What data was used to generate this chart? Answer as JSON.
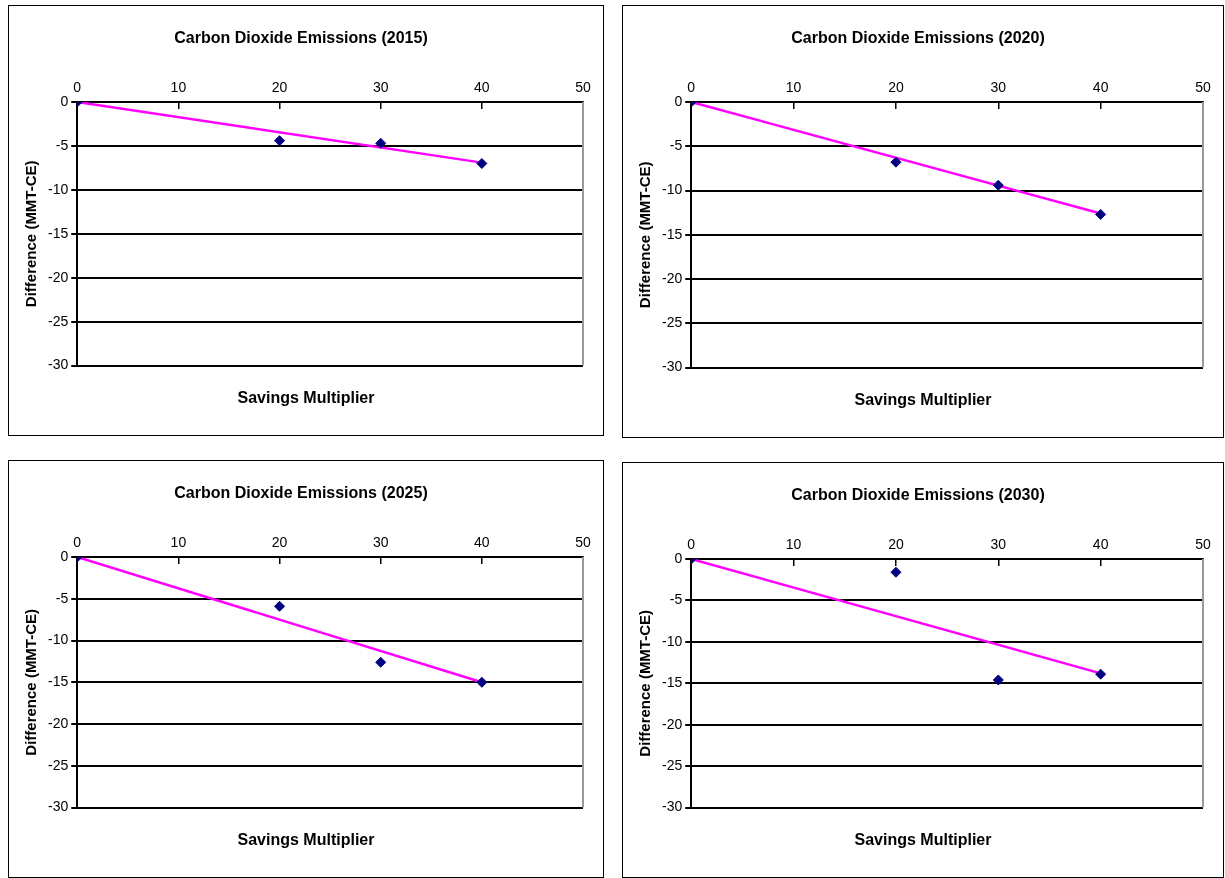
{
  "chart_data": [
    {
      "type": "scatter",
      "title": "Carbon Dioxide Emissions (2015)",
      "xlabel": "Savings Multiplier",
      "ylabel": "Difference (MMT-CE)",
      "xlim": [
        0,
        50
      ],
      "xticks": [
        0,
        10,
        20,
        30,
        40,
        50
      ],
      "ylim": [
        -30,
        0
      ],
      "yticks": [
        -30,
        -25,
        -20,
        -15,
        -10,
        -5,
        0
      ],
      "grid": "y",
      "legend": false,
      "series": [
        {
          "color": "#000080",
          "marker": "diamond",
          "x": [
            0,
            20,
            30,
            40
          ],
          "values": [
            0,
            -4.4,
            -4.7,
            -7.0
          ]
        },
        {
          "type": "line",
          "color": "#ff00ff",
          "marker": "none",
          "line_style": "solid",
          "x": [
            0,
            40
          ],
          "values": [
            0,
            -6.9
          ]
        }
      ]
    },
    {
      "type": "scatter",
      "title": "Carbon Dioxide Emissions (2020)",
      "xlabel": "Savings Multiplier",
      "ylabel": "Difference (MMT-CE)",
      "xlim": [
        0,
        50
      ],
      "xticks": [
        0,
        10,
        20,
        30,
        40,
        50
      ],
      "ylim": [
        -30,
        0
      ],
      "yticks": [
        -30,
        -25,
        -20,
        -15,
        -10,
        -5,
        0
      ],
      "grid": "y",
      "legend": false,
      "series": [
        {
          "color": "#000080",
          "marker": "diamond",
          "x": [
            0,
            20,
            30,
            40
          ],
          "values": [
            0,
            -6.8,
            -9.4,
            -12.7
          ]
        },
        {
          "type": "line",
          "color": "#ff00ff",
          "marker": "none",
          "line_style": "solid",
          "x": [
            0,
            40
          ],
          "values": [
            0,
            -12.6
          ]
        }
      ]
    },
    {
      "type": "scatter",
      "title": "Carbon Dioxide Emissions (2025)",
      "xlabel": "Savings Multiplier",
      "ylabel": "Difference (MMT-CE)",
      "xlim": [
        0,
        50
      ],
      "xticks": [
        0,
        10,
        20,
        30,
        40,
        50
      ],
      "ylim": [
        -30,
        0
      ],
      "yticks": [
        -30,
        -25,
        -20,
        -15,
        -10,
        -5,
        0
      ],
      "grid": "y",
      "legend": false,
      "series": [
        {
          "color": "#000080",
          "marker": "diamond",
          "x": [
            0,
            20,
            30,
            40
          ],
          "values": [
            0,
            -5.9,
            -12.6,
            -15.0
          ]
        },
        {
          "type": "line",
          "color": "#ff00ff",
          "marker": "none",
          "line_style": "solid",
          "x": [
            0,
            40
          ],
          "values": [
            0,
            -15.0
          ]
        }
      ]
    },
    {
      "type": "scatter",
      "title": "Carbon Dioxide Emissions (2030)",
      "xlabel": "Savings Multiplier",
      "ylabel": "Difference (MMT-CE)",
      "xlim": [
        0,
        50
      ],
      "xticks": [
        0,
        10,
        20,
        30,
        40,
        50
      ],
      "ylim": [
        -30,
        0
      ],
      "yticks": [
        -30,
        -25,
        -20,
        -15,
        -10,
        -5,
        0
      ],
      "grid": "y",
      "legend": false,
      "series": [
        {
          "color": "#000080",
          "marker": "diamond",
          "x": [
            0,
            20,
            30,
            40
          ],
          "values": [
            0,
            -1.6,
            -14.6,
            -13.9
          ]
        },
        {
          "type": "line",
          "color": "#ff00ff",
          "marker": "none",
          "line_style": "solid",
          "x": [
            0,
            40
          ],
          "values": [
            0,
            -13.8
          ]
        }
      ]
    }
  ]
}
